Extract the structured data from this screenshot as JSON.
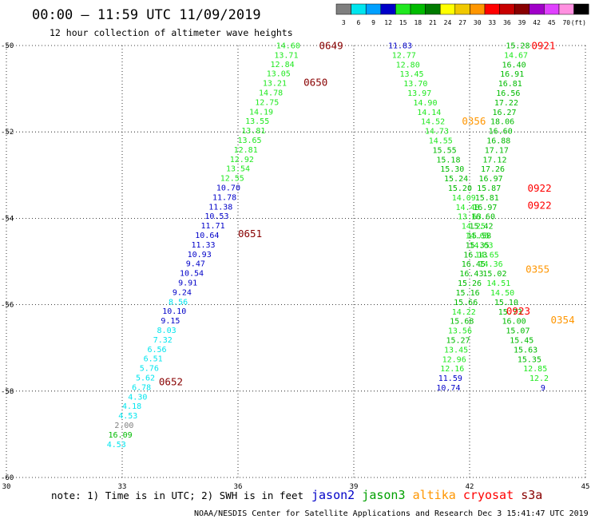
{
  "header": {
    "title": "00:00 – 11:59 UTC 11/09/2019",
    "subtitle": "12 hour collection of altimeter wave heights"
  },
  "legend": {
    "unit": "(ft)",
    "bins": [
      {
        "label": "3",
        "color": "#7f7f7f"
      },
      {
        "label": "6",
        "color": "#00e5ee"
      },
      {
        "label": "9",
        "color": "#00a0ff"
      },
      {
        "label": "12",
        "color": "#0000c8"
      },
      {
        "label": "15",
        "color": "#20e820"
      },
      {
        "label": "18",
        "color": "#00bb00"
      },
      {
        "label": "21",
        "color": "#007a00"
      },
      {
        "label": "24",
        "color": "#ffff00"
      },
      {
        "label": "27",
        "color": "#f0c800"
      },
      {
        "label": "30",
        "color": "#ff9600"
      },
      {
        "label": "33",
        "color": "#ff0000"
      },
      {
        "label": "36",
        "color": "#c80000"
      },
      {
        "label": "39",
        "color": "#880000"
      },
      {
        "label": "42",
        "color": "#a000c8"
      },
      {
        "label": "45",
        "color": "#e040ff"
      },
      {
        "label": "70",
        "color": "#ff90e0"
      },
      {
        "label": "",
        "color": "#000000"
      }
    ]
  },
  "footer": {
    "note": "note: 1) Time is in UTC; 2) SWH is in feet",
    "credit": "NOAA/NESDIS Center for Satellite Applications and Research   Dec  3 15:41:47 UTC 2019",
    "satellites": [
      {
        "name": "jason2",
        "color": "#0000c8"
      },
      {
        "name": "jason3",
        "color": "#00a000"
      },
      {
        "name": "altika",
        "color": "#ff9600"
      },
      {
        "name": "cryosat",
        "color": "#ff0000"
      },
      {
        "name": "s3a",
        "color": "#880000"
      }
    ]
  },
  "chart_data": {
    "type": "scatter",
    "xlim": [
      30,
      45
    ],
    "ylim": [
      -60,
      -50
    ],
    "xticks": [
      30,
      33,
      36,
      39,
      42,
      45
    ],
    "yticks": [
      -50,
      -52,
      -54,
      -56,
      -58,
      -60
    ],
    "grid": true,
    "colors": {
      "grey": "#7f7f7f",
      "cyan": "#00e5ee",
      "blue": "#0000c8",
      "lgreen": "#20e820",
      "green": "#00bb00",
      "orange": "#ff9600",
      "red": "#ff0000",
      "maroon": "#880000"
    },
    "time_labels": [
      {
        "x": 38.1,
        "y": -50.0,
        "text": "0649",
        "color": "maroon"
      },
      {
        "x": 37.7,
        "y": -50.85,
        "text": "0650",
        "color": "maroon"
      },
      {
        "x": 36.0,
        "y": -54.35,
        "text": "0651",
        "color": "maroon"
      },
      {
        "x": 33.95,
        "y": -57.78,
        "text": "0652",
        "color": "maroon"
      },
      {
        "x": 41.8,
        "y": -51.75,
        "text": "0356",
        "color": "orange"
      },
      {
        "x": 43.6,
        "y": -50.0,
        "text": "0921",
        "color": "red"
      },
      {
        "x": 43.5,
        "y": -53.3,
        "text": "0922",
        "color": "red"
      },
      {
        "x": 43.5,
        "y": -53.7,
        "text": "0922",
        "color": "red"
      },
      {
        "x": 43.45,
        "y": -55.18,
        "text": "0355",
        "color": "orange"
      },
      {
        "x": 42.95,
        "y": -56.15,
        "text": "0923",
        "color": "red"
      },
      {
        "x": 44.1,
        "y": -56.35,
        "text": "0354",
        "color": "orange"
      }
    ],
    "series": [
      {
        "name": "s3a",
        "points": [
          {
            "x": 37.3,
            "y": -50.0,
            "v": "14.60",
            "c": "lgreen"
          },
          {
            "x": 37.25,
            "y": -50.22,
            "v": "13.71",
            "c": "lgreen"
          },
          {
            "x": 37.15,
            "y": -50.43,
            "v": "12.84",
            "c": "lgreen"
          },
          {
            "x": 37.05,
            "y": -50.65,
            "v": "13.05",
            "c": "lgreen"
          },
          {
            "x": 36.95,
            "y": -50.87,
            "v": "13.21",
            "c": "lgreen"
          },
          {
            "x": 36.85,
            "y": -51.09,
            "v": "14.78",
            "c": "lgreen"
          },
          {
            "x": 36.75,
            "y": -51.31,
            "v": "12.75",
            "c": "lgreen"
          },
          {
            "x": 36.6,
            "y": -51.53,
            "v": "14.19",
            "c": "lgreen"
          },
          {
            "x": 36.5,
            "y": -51.75,
            "v": "13.55",
            "c": "lgreen"
          },
          {
            "x": 36.4,
            "y": -51.97,
            "v": "13.81",
            "c": "lgreen"
          },
          {
            "x": 36.3,
            "y": -52.19,
            "v": "13.65",
            "c": "lgreen"
          },
          {
            "x": 36.2,
            "y": -52.41,
            "v": "12.81",
            "c": "lgreen"
          },
          {
            "x": 36.1,
            "y": -52.63,
            "v": "12.92",
            "c": "lgreen"
          },
          {
            "x": 36.0,
            "y": -52.85,
            "v": "13.54",
            "c": "lgreen"
          },
          {
            "x": 35.85,
            "y": -53.07,
            "v": "12.55",
            "c": "lgreen"
          },
          {
            "x": 35.75,
            "y": -53.29,
            "v": "10.70",
            "c": "blue"
          },
          {
            "x": 35.65,
            "y": -53.51,
            "v": "11.78",
            "c": "blue"
          },
          {
            "x": 35.55,
            "y": -53.73,
            "v": "11.38",
            "c": "blue"
          },
          {
            "x": 35.45,
            "y": -53.95,
            "v": "10.53",
            "c": "blue"
          },
          {
            "x": 35.35,
            "y": -54.17,
            "v": "11.71",
            "c": "blue"
          },
          {
            "x": 35.2,
            "y": -54.39,
            "v": "10.64",
            "c": "blue"
          },
          {
            "x": 35.1,
            "y": -54.61,
            "v": "11.33",
            "c": "blue"
          },
          {
            "x": 35.0,
            "y": -54.83,
            "v": "10.93",
            "c": "blue"
          },
          {
            "x": 34.9,
            "y": -55.05,
            "v": "9.47",
            "c": "blue"
          },
          {
            "x": 34.8,
            "y": -55.27,
            "v": "10.54",
            "c": "blue"
          },
          {
            "x": 34.7,
            "y": -55.49,
            "v": "9.91",
            "c": "blue"
          },
          {
            "x": 34.55,
            "y": -55.71,
            "v": "9.24",
            "c": "blue"
          },
          {
            "x": 34.45,
            "y": -55.93,
            "v": "8.56",
            "c": "cyan"
          },
          {
            "x": 34.35,
            "y": -56.15,
            "v": "10.10",
            "c": "blue"
          },
          {
            "x": 34.25,
            "y": -56.37,
            "v": "9.15",
            "c": "blue"
          },
          {
            "x": 34.15,
            "y": -56.59,
            "v": "8.03",
            "c": "cyan"
          },
          {
            "x": 34.05,
            "y": -56.81,
            "v": "7.32",
            "c": "cyan"
          },
          {
            "x": 33.9,
            "y": -57.03,
            "v": "6.56",
            "c": "cyan"
          },
          {
            "x": 33.8,
            "y": -57.25,
            "v": "6.51",
            "c": "cyan"
          },
          {
            "x": 33.7,
            "y": -57.47,
            "v": "5.76",
            "c": "cyan"
          },
          {
            "x": 33.6,
            "y": -57.69,
            "v": "5.62",
            "c": "cyan"
          },
          {
            "x": 33.5,
            "y": -57.91,
            "v": "6.78",
            "c": "cyan"
          },
          {
            "x": 33.4,
            "y": -58.13,
            "v": "4.30",
            "c": "cyan"
          },
          {
            "x": 33.25,
            "y": -58.35,
            "v": "4.18",
            "c": "cyan"
          },
          {
            "x": 33.15,
            "y": -58.57,
            "v": "4.53",
            "c": "cyan"
          },
          {
            "x": 33.05,
            "y": -58.79,
            "v": "2.00",
            "c": "grey"
          },
          {
            "x": 32.95,
            "y": -59.01,
            "v": "16.09",
            "c": "green"
          },
          {
            "x": 32.85,
            "y": -59.23,
            "v": "4.53",
            "c": "cyan"
          }
        ]
      },
      {
        "name": "altika",
        "points": [
          {
            "x": 40.2,
            "y": -50.0,
            "v": "11.83",
            "c": "blue"
          },
          {
            "x": 40.3,
            "y": -50.22,
            "v": "12.77",
            "c": "lgreen"
          },
          {
            "x": 40.4,
            "y": -50.44,
            "v": "12.80",
            "c": "lgreen"
          },
          {
            "x": 40.5,
            "y": -50.66,
            "v": "13.45",
            "c": "lgreen"
          },
          {
            "x": 40.6,
            "y": -50.88,
            "v": "13.70",
            "c": "lgreen"
          },
          {
            "x": 40.7,
            "y": -51.1,
            "v": "13.97",
            "c": "lgreen"
          },
          {
            "x": 40.85,
            "y": -51.32,
            "v": "14.90",
            "c": "lgreen"
          },
          {
            "x": 40.95,
            "y": -51.54,
            "v": "14.14",
            "c": "lgreen"
          },
          {
            "x": 41.05,
            "y": -51.76,
            "v": "14.52",
            "c": "lgreen"
          },
          {
            "x": 41.15,
            "y": -51.98,
            "v": "14.73",
            "c": "lgreen"
          },
          {
            "x": 41.25,
            "y": -52.2,
            "v": "14.55",
            "c": "lgreen"
          },
          {
            "x": 41.35,
            "y": -52.42,
            "v": "15.55",
            "c": "green"
          },
          {
            "x": 41.45,
            "y": -52.64,
            "v": "15.18",
            "c": "green"
          },
          {
            "x": 41.55,
            "y": -52.86,
            "v": "15.30",
            "c": "green"
          },
          {
            "x": 41.65,
            "y": -53.08,
            "v": "15.24",
            "c": "green"
          },
          {
            "x": 41.75,
            "y": -53.3,
            "v": "15.20",
            "c": "green"
          },
          {
            "x": 41.85,
            "y": -53.52,
            "v": "14.09",
            "c": "lgreen"
          },
          {
            "x": 41.95,
            "y": -53.74,
            "v": "14.48",
            "c": "lgreen"
          },
          {
            "x": 42.0,
            "y": -53.96,
            "v": "13.63",
            "c": "lgreen"
          },
          {
            "x": 42.1,
            "y": -54.18,
            "v": "14.25",
            "c": "lgreen"
          },
          {
            "x": 42.2,
            "y": -54.4,
            "v": "14.65",
            "c": "lgreen"
          },
          {
            "x": 42.3,
            "y": -54.62,
            "v": "14.63",
            "c": "lgreen"
          },
          {
            "x": 42.45,
            "y": -54.84,
            "v": "14.65",
            "c": "lgreen"
          },
          {
            "x": 42.55,
            "y": -55.06,
            "v": "14.36",
            "c": "lgreen"
          },
          {
            "x": 42.65,
            "y": -55.28,
            "v": "15.02",
            "c": "green"
          },
          {
            "x": 42.75,
            "y": -55.5,
            "v": "14.51",
            "c": "lgreen"
          },
          {
            "x": 42.85,
            "y": -55.72,
            "v": "14.50",
            "c": "lgreen"
          },
          {
            "x": 42.95,
            "y": -55.94,
            "v": "15.10",
            "c": "green"
          },
          {
            "x": 43.05,
            "y": -56.16,
            "v": "15.73",
            "c": "green"
          },
          {
            "x": 43.15,
            "y": -56.38,
            "v": "16.00",
            "c": "green"
          },
          {
            "x": 43.25,
            "y": -56.6,
            "v": "15.07",
            "c": "green"
          },
          {
            "x": 43.35,
            "y": -56.82,
            "v": "15.45",
            "c": "green"
          },
          {
            "x": 43.45,
            "y": -57.04,
            "v": "15.63",
            "c": "green"
          },
          {
            "x": 43.55,
            "y": -57.26,
            "v": "15.35",
            "c": "green"
          },
          {
            "x": 43.7,
            "y": -57.48,
            "v": "12.85",
            "c": "lgreen"
          },
          {
            "x": 43.8,
            "y": -57.7,
            "v": "12.2",
            "c": "lgreen"
          },
          {
            "x": 43.9,
            "y": -57.92,
            "v": "9",
            "c": "blue"
          }
        ]
      },
      {
        "name": "cryosat",
        "points": [
          {
            "x": 43.25,
            "y": -50.0,
            "v": "15.28",
            "c": "green"
          },
          {
            "x": 43.2,
            "y": -50.22,
            "v": "14.67",
            "c": "lgreen"
          },
          {
            "x": 43.15,
            "y": -50.44,
            "v": "16.40",
            "c": "green"
          },
          {
            "x": 43.1,
            "y": -50.66,
            "v": "16.91",
            "c": "green"
          },
          {
            "x": 43.05,
            "y": -50.88,
            "v": "16.81",
            "c": "green"
          },
          {
            "x": 43.0,
            "y": -51.1,
            "v": "16.56",
            "c": "green"
          },
          {
            "x": 42.95,
            "y": -51.32,
            "v": "17.22",
            "c": "green"
          },
          {
            "x": 42.9,
            "y": -51.54,
            "v": "16.27",
            "c": "green"
          },
          {
            "x": 42.85,
            "y": -51.76,
            "v": "18.06",
            "c": "green"
          },
          {
            "x": 42.8,
            "y": -51.98,
            "v": "16.60",
            "c": "green"
          },
          {
            "x": 42.75,
            "y": -52.2,
            "v": "16.88",
            "c": "green"
          },
          {
            "x": 42.7,
            "y": -52.42,
            "v": "17.17",
            "c": "green"
          },
          {
            "x": 42.65,
            "y": -52.64,
            "v": "17.12",
            "c": "green"
          },
          {
            "x": 42.6,
            "y": -52.86,
            "v": "17.26",
            "c": "green"
          },
          {
            "x": 42.55,
            "y": -53.08,
            "v": "16.97",
            "c": "green"
          },
          {
            "x": 42.5,
            "y": -53.3,
            "v": "15.87",
            "c": "green"
          },
          {
            "x": 42.45,
            "y": -53.52,
            "v": "15.81",
            "c": "green"
          },
          {
            "x": 42.4,
            "y": -53.74,
            "v": "16.97",
            "c": "green"
          },
          {
            "x": 42.35,
            "y": -53.96,
            "v": "16.60",
            "c": "green"
          },
          {
            "x": 42.3,
            "y": -54.18,
            "v": "15.42",
            "c": "green"
          },
          {
            "x": 42.25,
            "y": -54.4,
            "v": "15.58",
            "c": "green"
          },
          {
            "x": 42.2,
            "y": -54.62,
            "v": "15.35",
            "c": "green"
          },
          {
            "x": 42.15,
            "y": -54.84,
            "v": "16.13",
            "c": "green"
          },
          {
            "x": 42.1,
            "y": -55.06,
            "v": "16.45",
            "c": "green"
          },
          {
            "x": 42.05,
            "y": -55.28,
            "v": "16.43",
            "c": "green"
          },
          {
            "x": 42.0,
            "y": -55.5,
            "v": "15.26",
            "c": "green"
          },
          {
            "x": 41.95,
            "y": -55.72,
            "v": "15.16",
            "c": "green"
          },
          {
            "x": 41.9,
            "y": -55.94,
            "v": "15.66",
            "c": "green"
          },
          {
            "x": 41.85,
            "y": -56.16,
            "v": "14.22",
            "c": "lgreen"
          },
          {
            "x": 41.8,
            "y": -56.38,
            "v": "15.68",
            "c": "green"
          },
          {
            "x": 41.75,
            "y": -56.6,
            "v": "13.56",
            "c": "lgreen"
          },
          {
            "x": 41.7,
            "y": -56.82,
            "v": "15.27",
            "c": "green"
          },
          {
            "x": 41.65,
            "y": -57.04,
            "v": "13.45",
            "c": "lgreen"
          },
          {
            "x": 41.6,
            "y": -57.26,
            "v": "12.96",
            "c": "lgreen"
          },
          {
            "x": 41.55,
            "y": -57.48,
            "v": "12.16",
            "c": "lgreen"
          },
          {
            "x": 41.5,
            "y": -57.7,
            "v": "11.59",
            "c": "blue"
          },
          {
            "x": 41.45,
            "y": -57.92,
            "v": "10.74",
            "c": "blue"
          }
        ]
      }
    ]
  }
}
